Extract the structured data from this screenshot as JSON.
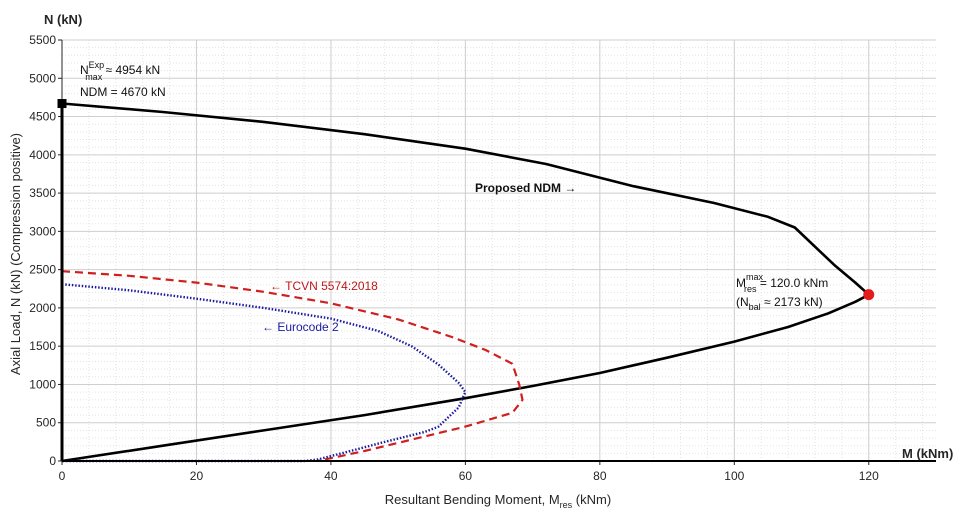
{
  "chart_data": {
    "type": "line",
    "xlabel_main": "Resultant Bending Moment, M",
    "xlabel_sub": "res",
    "xlabel_unit": " (kNm)",
    "ylabel": "Axial Load, N (kN) (Compression positive)",
    "x_axis_end_label": "M (kNm)",
    "y_axis_end_label": "N (kN)",
    "xlim": [
      0,
      130
    ],
    "ylim": [
      0,
      5500
    ],
    "xticks": [
      0,
      20,
      40,
      60,
      80,
      100,
      120
    ],
    "yticks": [
      0,
      500,
      1000,
      1500,
      2000,
      2500,
      3000,
      3500,
      4000,
      4500,
      5000,
      5500
    ],
    "grid": true,
    "minor_grid": true,
    "series": [
      {
        "name": "Proposed NDM",
        "color": "#000000",
        "style": "solid",
        "points": [
          [
            0,
            4670
          ],
          [
            15,
            4560
          ],
          [
            30,
            4430
          ],
          [
            45,
            4270
          ],
          [
            60,
            4080
          ],
          [
            72,
            3880
          ],
          [
            85,
            3590
          ],
          [
            97,
            3370
          ],
          [
            105,
            3190
          ],
          [
            109,
            3050
          ],
          [
            112,
            2800
          ],
          [
            115,
            2550
          ],
          [
            118,
            2330
          ],
          [
            120,
            2173
          ],
          [
            118,
            2080
          ],
          [
            114,
            1930
          ],
          [
            108,
            1750
          ],
          [
            100,
            1560
          ],
          [
            90,
            1350
          ],
          [
            80,
            1150
          ],
          [
            70,
            980
          ],
          [
            60,
            820
          ],
          [
            45,
            600
          ],
          [
            30,
            400
          ],
          [
            15,
            200
          ],
          [
            0,
            0
          ]
        ]
      },
      {
        "name": "TCVN 5574:2018",
        "color": "#d01f1f",
        "style": "dashed",
        "points": [
          [
            0,
            2480
          ],
          [
            10,
            2420
          ],
          [
            20,
            2330
          ],
          [
            30,
            2210
          ],
          [
            40,
            2060
          ],
          [
            50,
            1850
          ],
          [
            58,
            1620
          ],
          [
            63,
            1450
          ],
          [
            67,
            1270
          ],
          [
            68,
            1000
          ],
          [
            68.5,
            800
          ],
          [
            67,
            630
          ],
          [
            60,
            450
          ],
          [
            52,
            280
          ],
          [
            45,
            130
          ],
          [
            38,
            0
          ]
        ]
      },
      {
        "name": "Eurocode 2",
        "color": "#1a1aa0",
        "style": "dotted",
        "points": [
          [
            0,
            2310
          ],
          [
            10,
            2230
          ],
          [
            20,
            2120
          ],
          [
            30,
            2000
          ],
          [
            40,
            1860
          ],
          [
            47,
            1700
          ],
          [
            52,
            1500
          ],
          [
            56,
            1260
          ],
          [
            59,
            1020
          ],
          [
            60,
            900
          ],
          [
            59,
            700
          ],
          [
            56,
            450
          ],
          [
            54,
            380
          ],
          [
            48,
            250
          ],
          [
            42,
            110
          ],
          [
            38,
            20
          ],
          [
            36,
            0
          ],
          [
            0,
            0
          ]
        ]
      }
    ],
    "markers": [
      {
        "series": "Proposed NDM",
        "x": 0,
        "y": 4670,
        "shape": "square",
        "color": "#000000"
      },
      {
        "series": "Proposed NDM",
        "x": 120,
        "y": 2173,
        "shape": "circle",
        "color": "#e31b1b"
      }
    ],
    "annotations": {
      "nmax_prefix": "N",
      "nmax_sup": "Exp",
      "nmax_sub": "max",
      "nmax_rest": " ≈ 4954 kN",
      "ndm": "NDM = 4670 kN",
      "proposed_label": "Proposed NDM →",
      "tcvn_label": "← TCVN 5574:2018",
      "ec2_label": "← Eurocode 2",
      "mres_prefix": "M",
      "mres_sup": "max",
      "mres_sub": "res",
      "mres_rest": " = 120.0 kNm",
      "nbal_open": "(N",
      "nbal_sub": "bal",
      "nbal_rest": " ≈ 2173 kN)"
    }
  }
}
